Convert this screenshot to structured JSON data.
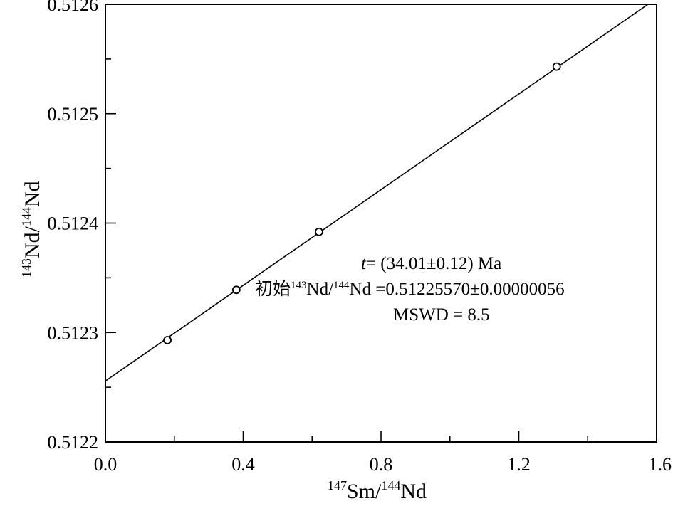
{
  "chart_data": {
    "type": "scatter",
    "x_label": {
      "iso1": "147",
      "el1": "Sm",
      "sep": "/",
      "iso2": "144",
      "el2": "Nd"
    },
    "y_label": {
      "iso1": "143",
      "el1": "Nd",
      "sep": "/",
      "iso2": "144",
      "el2": "Nd"
    },
    "xlim": [
      0.0,
      1.6
    ],
    "ylim": [
      0.5122,
      0.5126
    ],
    "x_ticks": [
      "0.0",
      "0.4",
      "0.8",
      "1.2",
      "1.6"
    ],
    "y_ticks": [
      "0.5122",
      "0.5123",
      "0.5124",
      "0.5125",
      "0.5126"
    ],
    "x_major": [
      0.0,
      0.4,
      0.8,
      1.2,
      1.6
    ],
    "y_major": [
      0.5122,
      0.5123,
      0.5124,
      0.5125,
      0.5126
    ],
    "x_minor": [
      0.2,
      0.6,
      1.0,
      1.4
    ],
    "y_minor": [
      0.51225,
      0.51235,
      0.51245,
      0.51255
    ],
    "points": [
      {
        "x": 0.18,
        "y": 0.512293
      },
      {
        "x": 0.38,
        "y": 0.512339
      },
      {
        "x": 0.62,
        "y": 0.512392
      },
      {
        "x": 1.31,
        "y": 0.512543
      }
    ],
    "fit_line": {
      "x0": 0.0,
      "y0": 0.5122557,
      "x1": 1.575,
      "y1": 0.5126
    },
    "annotation": {
      "line1_italic": "t",
      "line1_rest": "= (34.01±0.12) Ma",
      "line2_prefix": "初始",
      "line2_iso1": "143",
      "line2_el1": "Nd/",
      "line2_iso2": "144",
      "line2_rest": "Nd =0.51225570±0.00000056",
      "line3": "MSWD = 8.5"
    },
    "grid": false,
    "legend": "none"
  }
}
